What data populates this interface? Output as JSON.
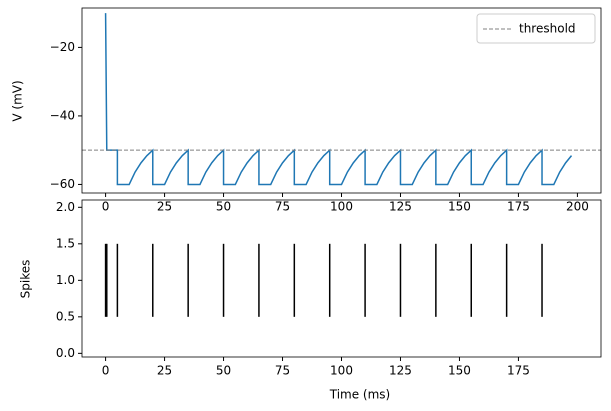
{
  "chart_data": [
    {
      "type": "line",
      "ylabel": "V (mV)",
      "x": [
        0,
        0.5,
        5,
        5,
        10,
        12.5,
        15,
        17.5,
        20,
        20,
        25,
        27.5,
        30,
        32.5,
        35,
        35,
        40,
        42.5,
        45,
        47.5,
        50,
        50,
        55,
        57.5,
        60,
        62.5,
        65,
        65,
        70,
        72.5,
        75,
        77.5,
        80,
        80,
        85,
        87.5,
        90,
        92.5,
        95,
        95,
        100,
        102.5,
        105,
        107.5,
        110,
        110,
        115,
        117.5,
        120,
        122.5,
        125,
        125,
        130,
        132.5,
        135,
        137.5,
        140,
        140,
        145,
        147.5,
        150,
        152.5,
        155,
        155,
        160,
        162.5,
        165,
        167.5,
        170,
        170,
        175,
        177.5,
        180,
        182.5,
        185,
        185,
        190,
        192.5,
        195,
        197.5
      ],
      "values": [
        -10,
        -50,
        -50,
        -60,
        -60,
        -56.4,
        -53.7,
        -51.6,
        -50,
        -60,
        -60,
        -56.4,
        -53.7,
        -51.6,
        -50,
        -60,
        -60,
        -56.4,
        -53.7,
        -51.6,
        -50,
        -60,
        -60,
        -56.4,
        -53.7,
        -51.6,
        -50,
        -60,
        -60,
        -56.4,
        -53.7,
        -51.6,
        -50,
        -60,
        -60,
        -56.4,
        -53.7,
        -51.6,
        -50,
        -60,
        -60,
        -56.4,
        -53.7,
        -51.6,
        -50,
        -60,
        -60,
        -56.4,
        -53.7,
        -51.6,
        -50,
        -60,
        -60,
        -56.4,
        -53.7,
        -51.6,
        -50,
        -60,
        -60,
        -56.4,
        -53.7,
        -51.6,
        -50,
        -60,
        -60,
        -56.4,
        -53.7,
        -51.6,
        -50,
        -60,
        -60,
        -56.4,
        -53.7,
        -51.6,
        -50,
        -60,
        -60,
        -56.4,
        -53.7,
        -51.6
      ],
      "color": "#1f77b4",
      "hlines": [
        {
          "name": "threshold",
          "value": -50,
          "color": "#808080"
        }
      ],
      "legend": "upper right",
      "xlim": [
        -10,
        210
      ],
      "xticks": [
        0,
        25,
        50,
        75,
        100,
        125,
        150,
        175,
        200
      ],
      "ylim": [
        -62.5,
        -8.5
      ],
      "yticks": [
        {
          "value": -60,
          "label": "−60"
        },
        {
          "value": -40,
          "label": "−40"
        },
        {
          "value": -20,
          "label": "−20"
        }
      ]
    },
    {
      "type": "eventplot",
      "xlabel": "Time (ms)",
      "ylabel": "Spikes",
      "spike_times": [
        0,
        0.5,
        5,
        20,
        35,
        50,
        65,
        80,
        95,
        110,
        125,
        140,
        155,
        170,
        185
      ],
      "line_offset": 1,
      "line_length": 1,
      "color": "#000000",
      "xlim": [
        -10,
        210
      ],
      "xticks": [
        0,
        25,
        50,
        75,
        100,
        125,
        150,
        175
      ],
      "ylim": [
        -0.05,
        2.1
      ],
      "yticks": [
        {
          "value": 0,
          "label": "0.0"
        },
        0.5,
        {
          "value": 1,
          "label": "1.0"
        },
        1.5,
        {
          "value": 2,
          "label": "2.0"
        }
      ]
    }
  ]
}
